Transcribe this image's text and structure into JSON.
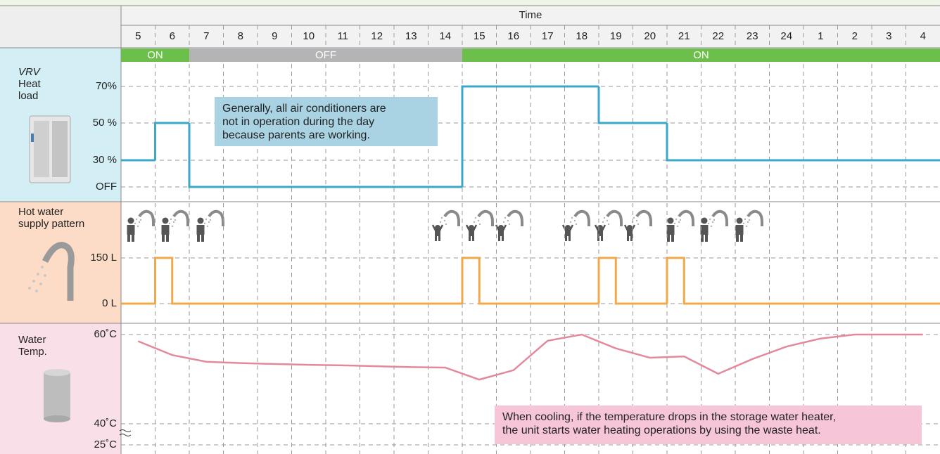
{
  "time_axis": {
    "title": "Time",
    "categories": [
      "5",
      "6",
      "7",
      "8",
      "9",
      "10",
      "11",
      "12",
      "13",
      "14",
      "15",
      "16",
      "17",
      "18",
      "19",
      "20",
      "21",
      "22",
      "23",
      "24",
      "1",
      "2",
      "3",
      "4"
    ]
  },
  "operation": [
    {
      "label": "ON",
      "start": "5",
      "end": "6",
      "color": "#6cbf4a"
    },
    {
      "label": "OFF",
      "start": "7",
      "end": "14",
      "color": "#b4b4b7"
    },
    {
      "label": "ON",
      "start": "15",
      "end": "4",
      "color": "#6cbf4a"
    }
  ],
  "chart_data": [
    {
      "type": "step",
      "brand": "VRV",
      "title": [
        "Heat",
        "load"
      ],
      "color": "#3ba8c9",
      "grid": true,
      "yticks": [
        {
          "value": 70,
          "label": "70%"
        },
        {
          "value": 50,
          "label": "50 %"
        },
        {
          "value": 30,
          "label": "30 %"
        },
        {
          "value": 0,
          "label": "OFF"
        }
      ],
      "values": [
        30,
        50,
        0,
        0,
        0,
        0,
        0,
        0,
        0,
        0,
        70,
        70,
        70,
        70,
        50,
        50,
        30,
        30,
        30,
        30,
        30,
        30,
        30,
        30
      ],
      "annotation": [
        "Generally, all air conditioners are",
        "not in operation during the day",
        "because parents are working."
      ]
    },
    {
      "type": "pulse",
      "title": [
        "Hot water",
        "supply pattern"
      ],
      "color": "#efa84a",
      "grid": true,
      "yticks": [
        {
          "value": 150,
          "label": "150 L"
        },
        {
          "value": 0,
          "label": "0 L"
        }
      ],
      "values": [
        0,
        150,
        0,
        0,
        0,
        0,
        0,
        0,
        0,
        0,
        150,
        0,
        0,
        0,
        150,
        0,
        150,
        0,
        0,
        0,
        0,
        0,
        0,
        0
      ]
    },
    {
      "type": "line",
      "title": [
        "Water",
        "Temp."
      ],
      "color": "#e28a9c",
      "grid": true,
      "yticks": [
        {
          "value": 60,
          "label": "60˚C"
        },
        {
          "value": 40,
          "label": "40˚C"
        },
        {
          "value": 25,
          "label": "25˚C"
        }
      ],
      "values": [
        58.5,
        55.4,
        53.9,
        53.6,
        53.4,
        53.2,
        53.1,
        52.9,
        52.7,
        52.6,
        49.9,
        52,
        58.6,
        60,
        56.9,
        54.8,
        55.1,
        51.2,
        54.5,
        57.3,
        59.1,
        60,
        60,
        60
      ],
      "annotation": [
        "When cooling, if the temperature drops in the storage water heater,",
        "the unit starts water heating operations by using the waste heat."
      ]
    }
  ]
}
